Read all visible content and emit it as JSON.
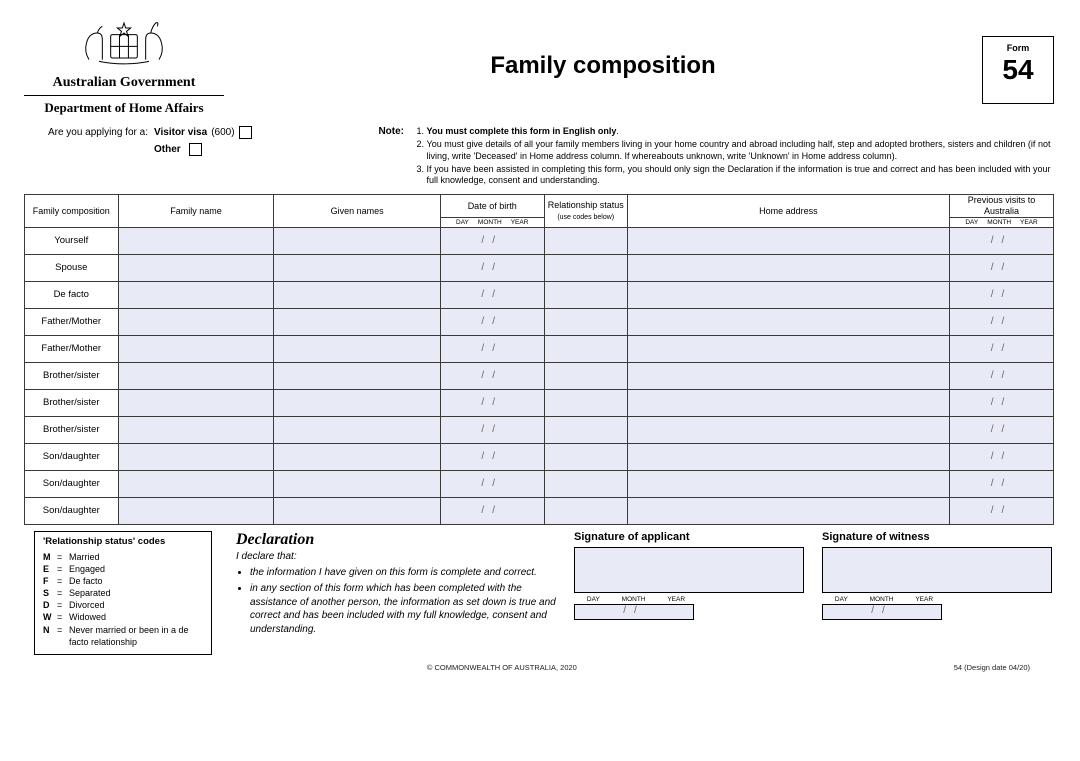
{
  "header": {
    "gov_line1": "Australian Government",
    "gov_line2": "Department of Home Affairs",
    "title": "Family composition",
    "form_label": "Form",
    "form_number": "54"
  },
  "apply": {
    "question": "Are you applying for a:",
    "opt1": "Visitor visa",
    "opt1_num": "(600)",
    "opt2": "Other",
    "note_label": "Note:",
    "note1_bold": "You must complete this form in English only",
    "note2": "You must give details of all your family members living in your home country and abroad including half, step and adopted brothers, sisters and children (if not living, write 'Deceased' in Home address column. If whereabouts unknown, write 'Unknown' in Home address column).",
    "note3": "If you have been assisted in completing this form, you should only sign the Declaration if the information is true and correct and has been included with your full knowledge, consent and understanding."
  },
  "table": {
    "headers": {
      "famcomp": "Family composition",
      "famname": "Family name",
      "given": "Given names",
      "dob": "Date of birth",
      "rel": "Relationship status",
      "rel_sub": "(use codes below)",
      "addr": "Home address",
      "prev": "Previous visits to Australia",
      "day": "DAY",
      "month": "MONTH",
      "year": "YEAR"
    },
    "rows": [
      "Yourself",
      "Spouse",
      "De facto",
      "Father/Mother",
      "Father/Mother",
      "Brother/sister",
      "Brother/sister",
      "Brother/sister",
      "Son/daughter",
      "Son/daughter",
      "Son/daughter"
    ]
  },
  "codes": {
    "title": "'Relationship status' codes",
    "items": [
      {
        "c": "M",
        "m": "Married"
      },
      {
        "c": "E",
        "m": "Engaged"
      },
      {
        "c": "F",
        "m": "De facto"
      },
      {
        "c": "S",
        "m": "Separated"
      },
      {
        "c": "D",
        "m": "Divorced"
      },
      {
        "c": "W",
        "m": "Widowed"
      },
      {
        "c": "N",
        "m": "Never married or been in a de facto relationship"
      }
    ]
  },
  "declaration": {
    "heading": "Declaration",
    "intro": "I declare that:",
    "b1": "the information I have given on this form is complete and correct.",
    "b2": "in any section of this form which has been completed with the assistance of another person, the information as set down is true and correct and has been included with my full knowledge, consent and understanding."
  },
  "sig": {
    "applicant": "Signature of applicant",
    "witness": "Signature of witness",
    "day": "DAY",
    "month": "MONTH",
    "year": "YEAR"
  },
  "footer": {
    "copyright": "© COMMONWEALTH OF AUSTRALIA, 2020",
    "design": "54 (Design date 04/20)"
  }
}
